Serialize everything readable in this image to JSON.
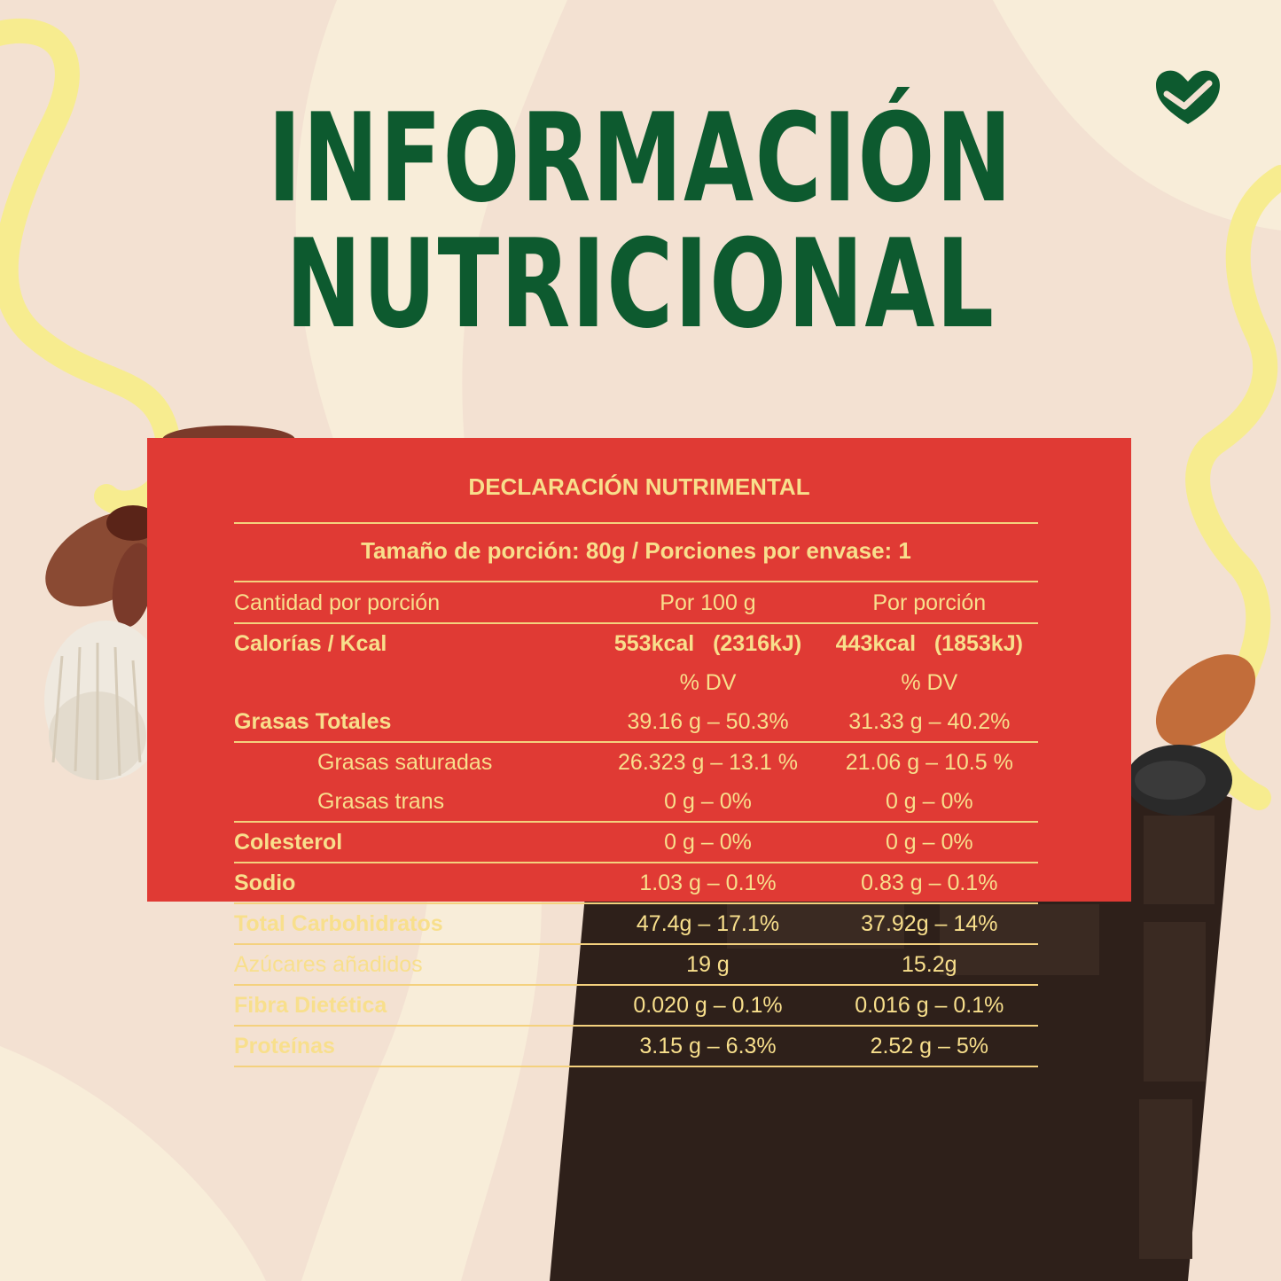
{
  "title": {
    "line1": "INFORMACIÓN",
    "line2": "NUTRICIONAL"
  },
  "colors": {
    "background": "#f3e1d2",
    "title": "#0d5a2f",
    "panel": "#e03a34",
    "panel_text": "#f8df8c",
    "swirl": "#f7ec8f"
  },
  "brand_icon": "heart-shield-icon",
  "table": {
    "heading": "DECLARACIÓN NUTRIMENTAL",
    "serving": "Tamaño de porción: 80g / Porciones por envase: 1",
    "col_headers": {
      "label": "Cantidad por porción",
      "per100": "Por 100 g",
      "perServing": "Por porción"
    },
    "calories": {
      "label": "Calorías / Kcal",
      "per100": "553kcal   (2316kJ)",
      "perServing": "443kcal   (1853kJ)"
    },
    "dv": {
      "per100": "% DV",
      "perServing": "% DV"
    },
    "rows": [
      {
        "label": "Grasas Totales",
        "per100": "39.16 g – 50.3%",
        "perServing": "31.33 g – 40.2%"
      },
      {
        "label": "Grasas saturadas",
        "per100": "26.323 g – 13.1 %",
        "perServing": "21.06 g – 10.5 %"
      },
      {
        "label": "Grasas trans",
        "per100": "0 g – 0%",
        "perServing": "0 g – 0%"
      },
      {
        "label": "Colesterol",
        "per100": "0 g – 0%",
        "perServing": "0 g – 0%"
      },
      {
        "label": "Sodio",
        "per100": "1.03 g – 0.1%",
        "perServing": "0.83 g – 0.1%"
      },
      {
        "label": "Total Carbohidratos",
        "per100": "47.4g – 17.1%",
        "perServing": "37.92g – 14%"
      },
      {
        "label": "Azúcares añadidos",
        "per100": "19 g",
        "perServing": "15.2g"
      },
      {
        "label": "Fibra Dietética",
        "per100": "0.020 g – 0.1%",
        "perServing": "0.016 g – 0.1%"
      },
      {
        "label": "Proteínas",
        "per100": "3.15 g – 6.3%",
        "perServing": "2.52 g – 5%"
      }
    ]
  }
}
